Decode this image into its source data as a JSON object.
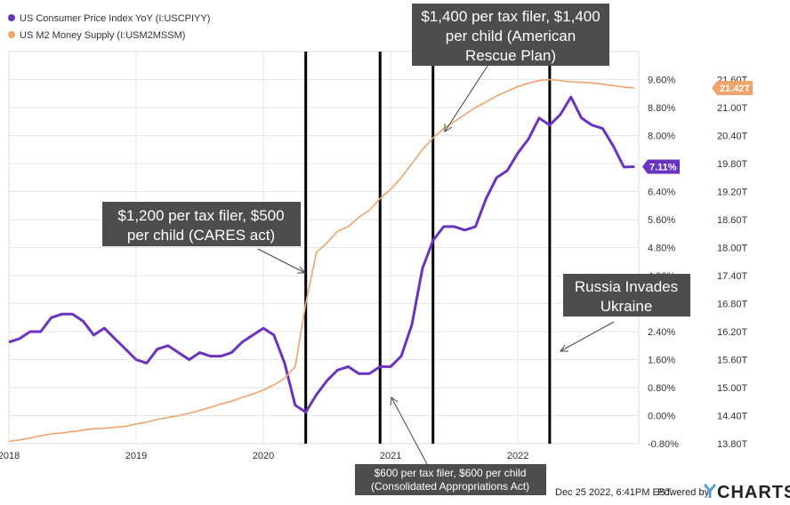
{
  "chart_data": {
    "type": "line",
    "legend_placement": "top-left",
    "grid": true,
    "x_tick_labels": [
      "2018",
      "2019",
      "2020",
      "2021",
      "2022"
    ],
    "x_ticks": [
      2018.0,
      2019.0,
      2020.0,
      2021.0,
      2022.0
    ],
    "xlim": [
      2018.0,
      2022.95
    ],
    "left_axis": {
      "ticks": [
        -0.8,
        0.0,
        0.8,
        1.6,
        2.4,
        3.2,
        4.0,
        4.8,
        5.6,
        6.4,
        7.2,
        8.0,
        8.8,
        9.6
      ],
      "labels": [
        "-0.80%",
        "0.00%",
        "0.80%",
        "1.60%",
        "2.40%",
        "3.20%",
        "4.00%",
        "4.80%",
        "5.60%",
        "6.40%",
        "7.20%",
        "8.00%",
        "8.80%",
        "9.60%"
      ],
      "ylim": [
        -0.8,
        10.4
      ]
    },
    "right_axis": {
      "ticks": [
        13.8,
        14.4,
        15.0,
        15.6,
        16.2,
        16.8,
        17.4,
        18.0,
        18.6,
        19.2,
        19.8,
        20.4,
        21.0,
        21.6
      ],
      "labels": [
        "13.80T",
        "14.40T",
        "15.00T",
        "15.60T",
        "16.20T",
        "16.80T",
        "17.40T",
        "18.00T",
        "18.60T",
        "19.20T",
        "19.80T",
        "20.40T",
        "21.00T",
        "21.60T"
      ],
      "ylim": [
        13.8,
        22.2
      ]
    },
    "series": [
      {
        "name": "US Consumer Price Index YoY (I:USCPIYY)",
        "color": "#6a33c2",
        "axis": "left",
        "end_label": "7.11%",
        "x": [
          2018.0,
          2018.083,
          2018.167,
          2018.25,
          2018.333,
          2018.417,
          2018.5,
          2018.583,
          2018.667,
          2018.75,
          2018.833,
          2018.917,
          2019.0,
          2019.083,
          2019.167,
          2019.25,
          2019.333,
          2019.417,
          2019.5,
          2019.583,
          2019.667,
          2019.75,
          2019.833,
          2019.917,
          2020.0,
          2020.083,
          2020.167,
          2020.25,
          2020.333,
          2020.417,
          2020.5,
          2020.583,
          2020.667,
          2020.75,
          2020.833,
          2020.917,
          2021.0,
          2021.083,
          2021.167,
          2021.25,
          2021.333,
          2021.417,
          2021.5,
          2021.583,
          2021.667,
          2021.75,
          2021.833,
          2021.917,
          2022.0,
          2022.083,
          2022.167,
          2022.25,
          2022.333,
          2022.417,
          2022.5,
          2022.583,
          2022.667,
          2022.75,
          2022.833,
          2022.917
        ],
        "y": [
          2.1,
          2.2,
          2.4,
          2.4,
          2.8,
          2.9,
          2.9,
          2.7,
          2.3,
          2.5,
          2.2,
          1.9,
          1.6,
          1.5,
          1.9,
          2.0,
          1.8,
          1.6,
          1.8,
          1.7,
          1.7,
          1.8,
          2.1,
          2.3,
          2.5,
          2.3,
          1.5,
          0.3,
          0.1,
          0.6,
          1.0,
          1.3,
          1.4,
          1.2,
          1.2,
          1.4,
          1.4,
          1.7,
          2.6,
          4.2,
          5.0,
          5.4,
          5.4,
          5.3,
          5.4,
          6.2,
          6.8,
          7.0,
          7.5,
          7.9,
          8.5,
          8.3,
          8.6,
          9.1,
          8.5,
          8.3,
          8.2,
          7.7,
          7.1,
          7.11
        ]
      },
      {
        "name": "US M2 Money Supply (I:USM2MSSM)",
        "color": "#f2a36b",
        "axis": "right",
        "end_label": "21.42T",
        "x": [
          2018.0,
          2018.083,
          2018.167,
          2018.25,
          2018.333,
          2018.417,
          2018.5,
          2018.583,
          2018.667,
          2018.75,
          2018.833,
          2018.917,
          2019.0,
          2019.083,
          2019.167,
          2019.25,
          2019.333,
          2019.417,
          2019.5,
          2019.583,
          2019.667,
          2019.75,
          2019.833,
          2019.917,
          2020.0,
          2020.083,
          2020.167,
          2020.25,
          2020.333,
          2020.417,
          2020.5,
          2020.583,
          2020.667,
          2020.75,
          2020.833,
          2020.917,
          2021.0,
          2021.083,
          2021.167,
          2021.25,
          2021.333,
          2021.417,
          2021.5,
          2021.583,
          2021.667,
          2021.75,
          2021.833,
          2021.917,
          2022.0,
          2022.083,
          2022.167,
          2022.25,
          2022.333,
          2022.417,
          2022.5,
          2022.583,
          2022.667,
          2022.75,
          2022.833,
          2022.917
        ],
        "y": [
          13.85,
          13.88,
          13.92,
          13.97,
          14.01,
          14.03,
          14.06,
          14.09,
          14.12,
          14.13,
          14.15,
          14.17,
          14.22,
          14.26,
          14.32,
          14.36,
          14.4,
          14.45,
          14.51,
          14.58,
          14.65,
          14.71,
          14.79,
          14.86,
          14.95,
          15.06,
          15.2,
          15.45,
          16.8,
          17.9,
          18.1,
          18.35,
          18.45,
          18.65,
          18.8,
          19.05,
          19.25,
          19.5,
          19.8,
          20.1,
          20.35,
          20.55,
          20.7,
          20.85,
          21.0,
          21.12,
          21.25,
          21.35,
          21.45,
          21.52,
          21.58,
          21.6,
          21.58,
          21.55,
          21.54,
          21.53,
          21.5,
          21.47,
          21.44,
          21.42
        ]
      }
    ],
    "vertical_lines": [
      2020.333,
      2020.917,
      2021.333,
      2022.25
    ],
    "annotations": [
      {
        "lines": [
          "$1,200 per tax filer, $500",
          "per child (CARES act)"
        ]
      },
      {
        "lines": [
          "$1,400 per tax filer, $1,400",
          "per child (American",
          "Rescue Plan)"
        ]
      },
      {
        "lines": [
          "$600 per tax filer, $600 per child",
          "(Consolidated Appropriations Act)"
        ]
      },
      {
        "lines": [
          "Russia Invades",
          "Ukraine"
        ]
      }
    ]
  },
  "footer": {
    "timestamp": "Dec 25 2022, 6:41PM EST.",
    "powered_by": "Powered by",
    "brand": "CHARTS"
  }
}
